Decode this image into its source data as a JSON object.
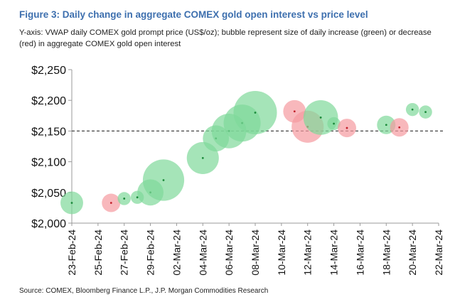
{
  "header": {
    "title": "Figure 3: Daily change in aggregate COMEX gold open interest vs price level",
    "subtitle": "Y-axis: VWAP daily COMEX gold prompt price (US$/oz); bubble represent size of daily increase (green) or decrease (red) in aggregate COMEX gold open interest"
  },
  "footer": {
    "source": "Source: COMEX, Bloomberg Finance L.P., J.P. Morgan Commodities Research"
  },
  "chart_data": {
    "type": "scatter",
    "subtype": "bubble",
    "title": "Figure 3: Daily change in aggregate COMEX gold open interest vs price level",
    "xlabel": "",
    "ylabel": "",
    "ylim": [
      2000,
      2250
    ],
    "y_ticks": [
      2000,
      2050,
      2100,
      2150,
      2200,
      2250
    ],
    "y_tick_labels": [
      "$2,000",
      "$2,050",
      "$2,100",
      "$2,150",
      "$2,200",
      "$2,250"
    ],
    "x_tick_labels": [
      "23-Feb-24",
      "25-Feb-24",
      "27-Feb-24",
      "29-Feb-24",
      "02-Mar-24",
      "04-Mar-24",
      "06-Mar-24",
      "08-Mar-24",
      "10-Mar-24",
      "12-Mar-24",
      "14-Mar-24",
      "16-Mar-24",
      "18-Mar-24",
      "20-Mar-24",
      "22-Mar-24"
    ],
    "xlim": [
      "2024-02-23",
      "2024-03-22"
    ],
    "reference_line": {
      "y": 2150,
      "style": "dashed"
    },
    "legend": "none",
    "grid": false,
    "colors": {
      "increase": "#7fd99a",
      "decrease": "#f59aa0",
      "increase_center": "#1b8a3a",
      "decrease_center": "#c2202a",
      "reference": "#444444"
    },
    "points": [
      {
        "date": "2024-02-23",
        "price": 2033,
        "size": 3,
        "direction": "increase"
      },
      {
        "date": "2024-02-26",
        "price": 2033,
        "size": 2,
        "direction": "decrease"
      },
      {
        "date": "2024-02-27",
        "price": 2040,
        "size": 1,
        "direction": "increase"
      },
      {
        "date": "2024-02-28",
        "price": 2042,
        "size": 1,
        "direction": "increase"
      },
      {
        "date": "2024-02-29",
        "price": 2050,
        "size": 4,
        "direction": "increase"
      },
      {
        "date": "2024-03-01",
        "price": 2070,
        "size": 10,
        "direction": "increase"
      },
      {
        "date": "2024-03-04",
        "price": 2106,
        "size": 6,
        "direction": "increase"
      },
      {
        "date": "2024-03-05",
        "price": 2138,
        "size": 4,
        "direction": "increase"
      },
      {
        "date": "2024-03-06",
        "price": 2150,
        "size": 7,
        "direction": "increase"
      },
      {
        "date": "2024-03-07",
        "price": 2163,
        "size": 8,
        "direction": "increase"
      },
      {
        "date": "2024-03-08",
        "price": 2180,
        "size": 11,
        "direction": "increase"
      },
      {
        "date": "2024-03-11",
        "price": 2182,
        "size": 3,
        "direction": "decrease"
      },
      {
        "date": "2024-03-12",
        "price": 2157,
        "size": 6,
        "direction": "decrease"
      },
      {
        "date": "2024-03-13",
        "price": 2172,
        "size": 7,
        "direction": "increase"
      },
      {
        "date": "2024-03-14",
        "price": 2162,
        "size": 1,
        "direction": "increase"
      },
      {
        "date": "2024-03-15",
        "price": 2155,
        "size": 2,
        "direction": "decrease"
      },
      {
        "date": "2024-03-18",
        "price": 2160,
        "size": 2,
        "direction": "increase"
      },
      {
        "date": "2024-03-19",
        "price": 2156,
        "size": 2,
        "direction": "decrease"
      },
      {
        "date": "2024-03-20",
        "price": 2185,
        "size": 1,
        "direction": "increase"
      },
      {
        "date": "2024-03-21",
        "price": 2181,
        "size": 1,
        "direction": "increase"
      }
    ]
  }
}
